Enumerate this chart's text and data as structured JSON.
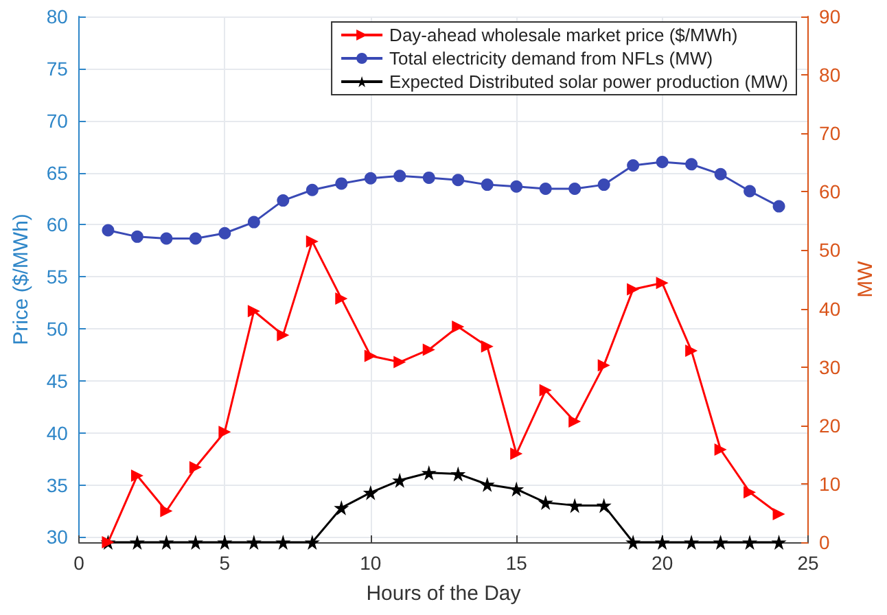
{
  "chart_data": {
    "type": "line",
    "xlabel": "Hours of the Day",
    "ylabel": "Price ($/MWh)",
    "y2label": "MW",
    "x": [
      1,
      2,
      3,
      4,
      5,
      6,
      7,
      8,
      9,
      10,
      11,
      12,
      13,
      14,
      15,
      16,
      17,
      18,
      19,
      20,
      21,
      22,
      23,
      24
    ],
    "series": [
      {
        "name": "Day-ahead wholesale market price ($/MWh)",
        "color": "#ff0000",
        "marker": "triangle",
        "values": [
          29.5,
          35.9,
          32.5,
          36.7,
          40.1,
          51.7,
          49.4,
          58.4,
          52.9,
          47.4,
          46.8,
          48.0,
          50.2,
          48.3,
          38.0,
          44.1,
          41.1,
          46.5,
          53.8,
          54.4,
          47.9,
          38.4,
          34.3,
          32.2
        ]
      },
      {
        "name": "Total electricity demand from NFLs (MW)",
        "color": "#3949b5",
        "marker": "circle",
        "axis": "y2",
        "values": [
          53.4,
          52.3,
          52.0,
          52.0,
          52.9,
          54.8,
          58.5,
          60.3,
          61.4,
          62.3,
          62.7,
          62.4,
          62.0,
          61.2,
          60.9,
          60.5,
          60.5,
          61.2,
          64.5,
          65.1,
          64.7,
          63.0,
          60.1,
          57.5
        ]
      },
      {
        "name": "Expected Distributed solar power production (MW)",
        "color": "#000000",
        "marker": "star",
        "axis": "y2",
        "values": [
          0,
          0,
          0,
          0,
          0,
          0,
          0,
          0,
          5.9,
          8.5,
          10.6,
          11.9,
          11.7,
          9.9,
          9.1,
          6.8,
          6.3,
          6.3,
          0,
          0,
          0,
          0,
          0,
          0
        ]
      }
    ],
    "xlim": [
      0,
      25
    ],
    "xticks": [
      0,
      5,
      10,
      15,
      20,
      25
    ],
    "ylim": [
      29.5,
      80
    ],
    "yticks": [
      30,
      35,
      40,
      45,
      50,
      55,
      60,
      65,
      70,
      75,
      80
    ],
    "y2lim": [
      0,
      90
    ],
    "y2ticks": [
      0,
      10,
      20,
      30,
      40,
      50,
      60,
      70,
      80,
      90
    ],
    "grid": true,
    "legend": "top right",
    "line_style": "solid"
  }
}
